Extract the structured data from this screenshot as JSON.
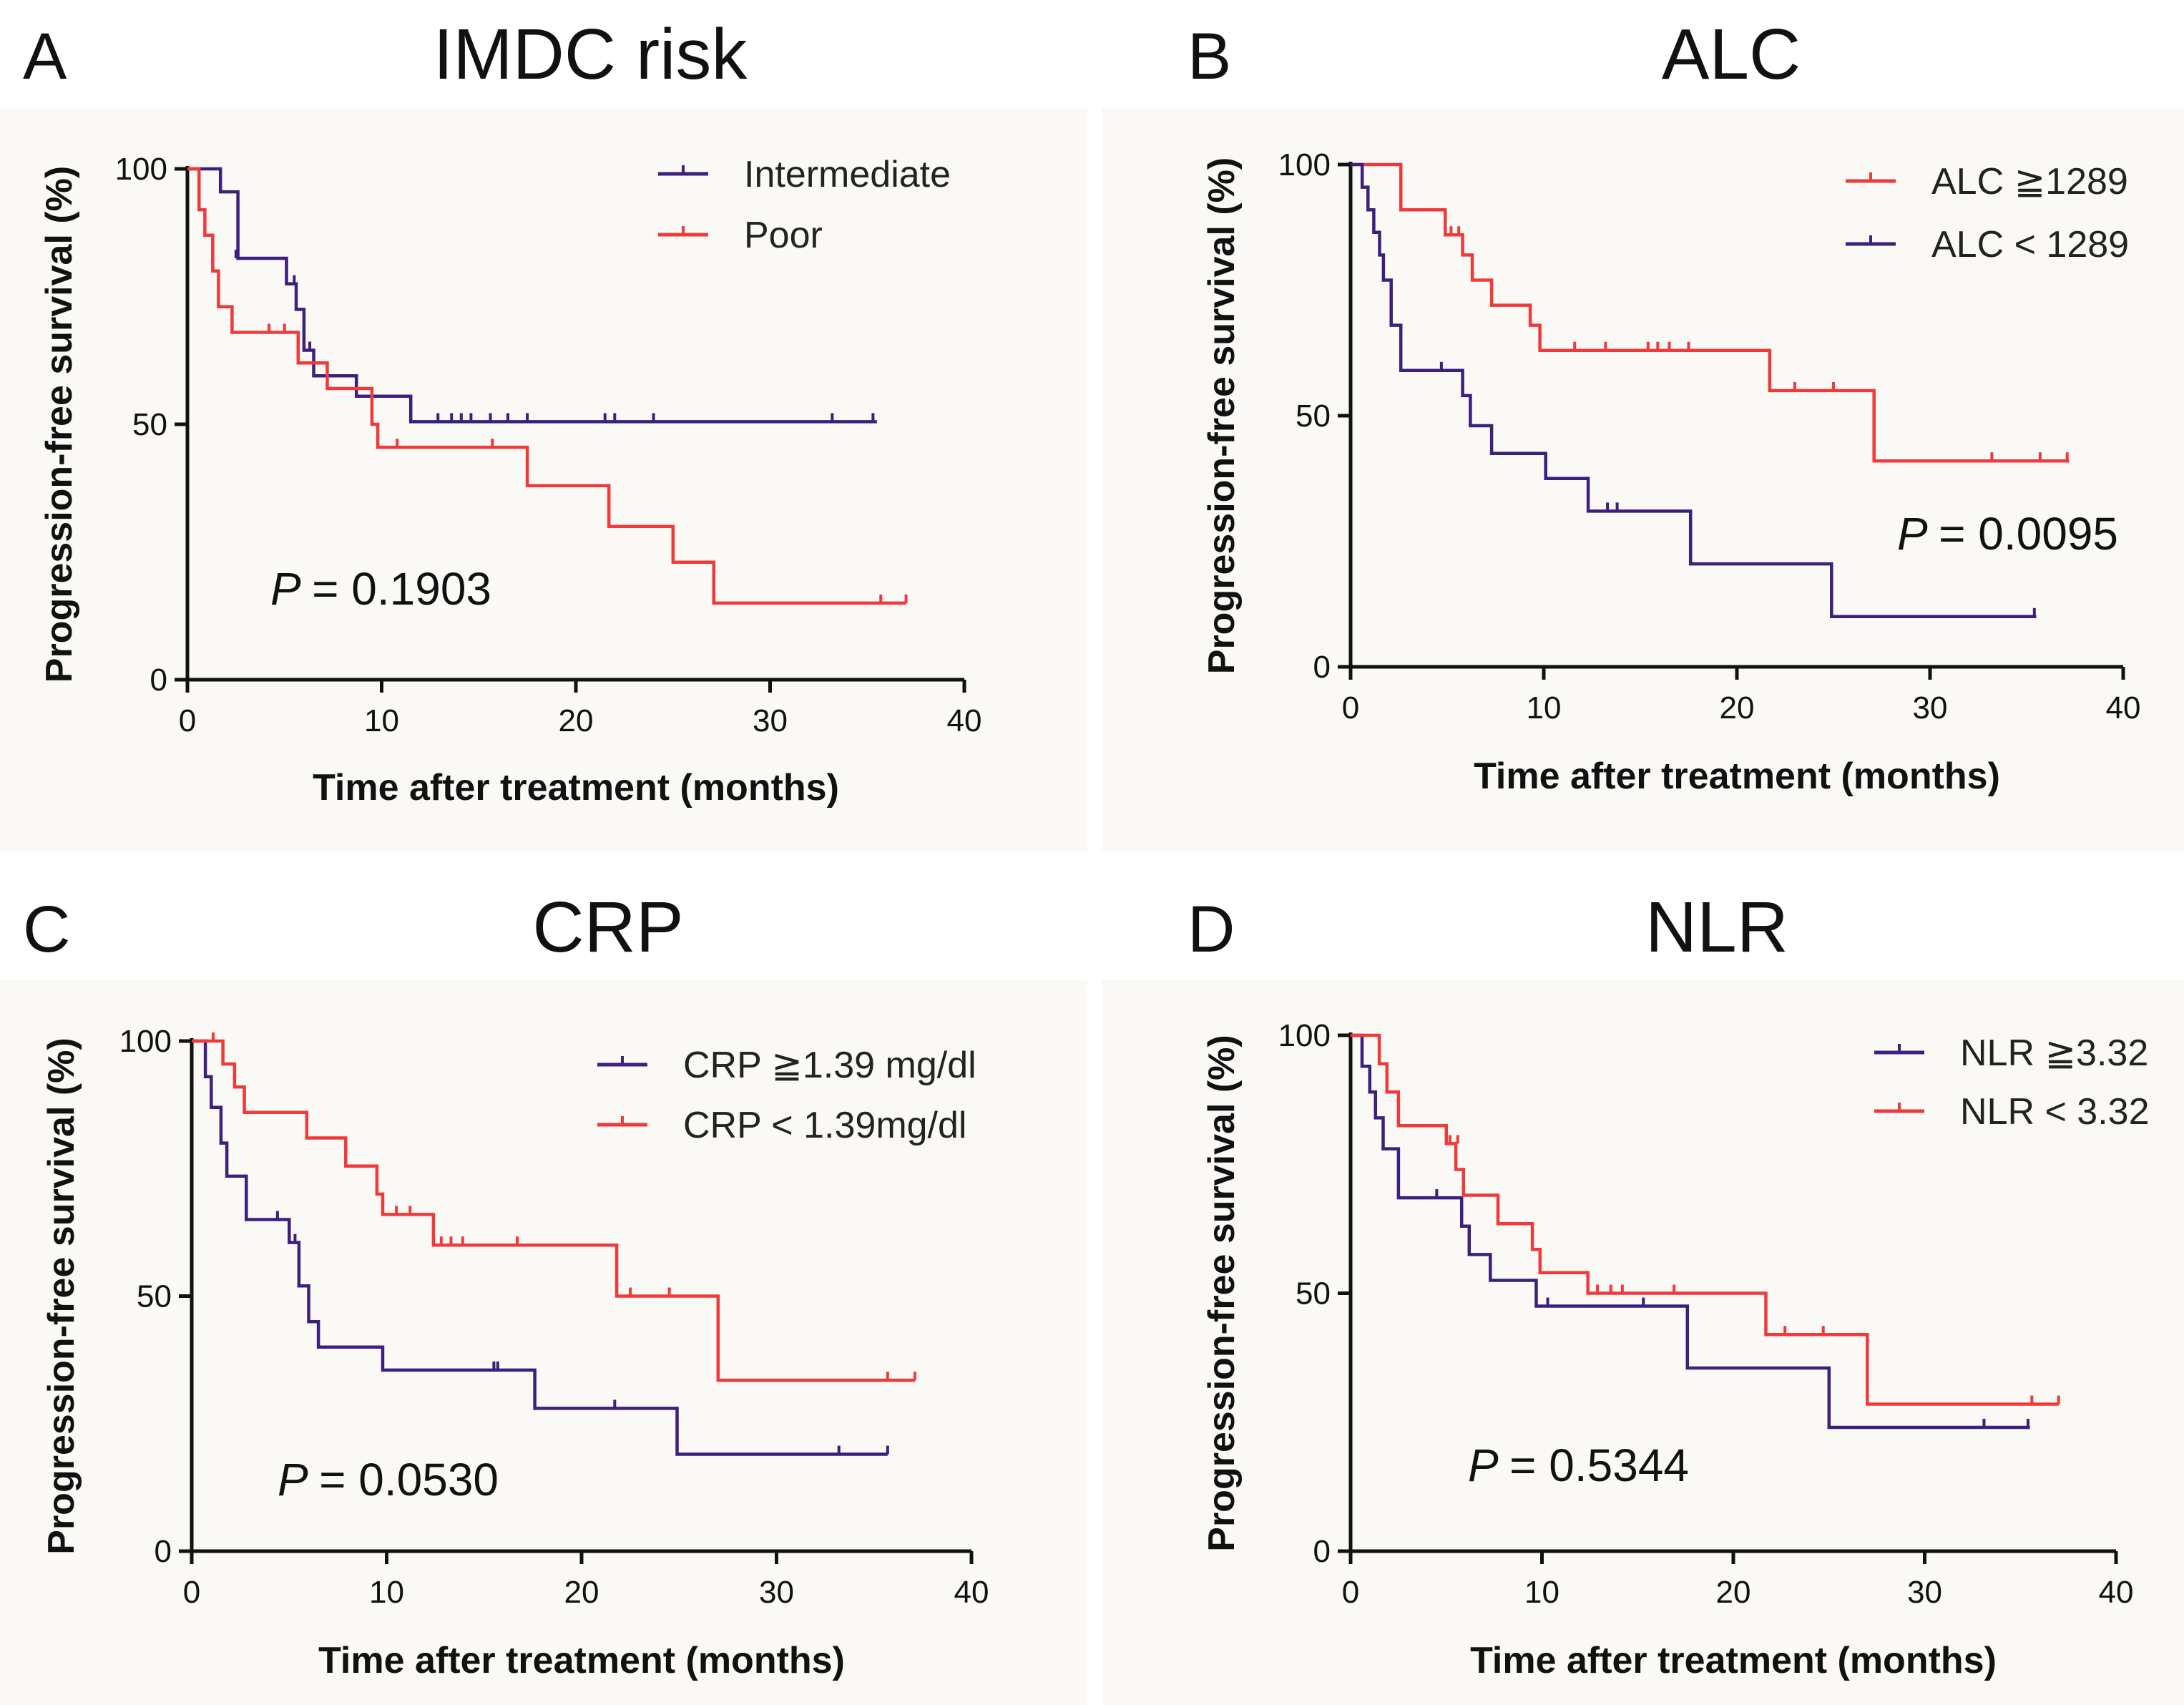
{
  "chart_data": [
    {
      "type": "line",
      "subtype": "kaplan-meier",
      "panel": "A",
      "title": "IMDC risk",
      "xlabel": "Time after treatment (months)",
      "ylabel": "Progression-free survival (%)",
      "xlim": [
        0,
        40
      ],
      "ylim": [
        0,
        100
      ],
      "xticks": [
        "0",
        "10",
        "20",
        "30",
        "40"
      ],
      "yticks": [
        "0",
        "50",
        "100"
      ],
      "legend_position": "top-right",
      "p_label": "P",
      "p_value": "= 0.1903",
      "series": [
        {
          "name": "Intermediate",
          "color": "#3c1f7e",
          "x": [
            0,
            1.7,
            2.6,
            5.1,
            5.6,
            6.0,
            6.5,
            8.7,
            11.5,
            12.8,
            35.5
          ],
          "y": [
            100,
            95.5,
            82.5,
            77.5,
            72.5,
            64.5,
            59.5,
            55.5,
            50.5,
            50.5,
            50.5
          ],
          "censor_x": [
            2.5,
            5.5,
            6.3,
            12.9,
            13.6,
            14.1,
            14.6,
            15.6,
            16.5,
            17.5,
            21.5,
            22.0,
            24.0,
            33.2,
            35.3
          ],
          "censor_y": [
            82.5,
            77.5,
            64.5,
            50.5,
            50.5,
            50.5,
            50.5,
            50.5,
            50.5,
            50.5,
            50.5,
            50.5,
            50.5,
            50.5,
            50.5
          ]
        },
        {
          "name": "Poor",
          "color": "#f03a3a",
          "x": [
            0,
            0.6,
            0.9,
            1.3,
            1.6,
            2.3,
            5.7,
            7.2,
            9.5,
            9.8,
            17.5,
            21.7,
            25.0,
            27.1,
            37.0
          ],
          "y": [
            100,
            92,
            87,
            80,
            73,
            68,
            62,
            57,
            50,
            45.5,
            38,
            30,
            23,
            15,
            15
          ],
          "censor_x": [
            4.2,
            5.0,
            10.8,
            15.7,
            35.7,
            37.0
          ],
          "censor_y": [
            68,
            68,
            45.5,
            45.5,
            15,
            15
          ]
        }
      ]
    },
    {
      "type": "line",
      "subtype": "kaplan-meier",
      "panel": "B",
      "title": "ALC",
      "xlabel": "Time after treatment (months)",
      "ylabel": "Progression-free survival (%)",
      "xlim": [
        0,
        40
      ],
      "ylim": [
        0,
        100
      ],
      "xticks": [
        "0",
        "10",
        "20",
        "30",
        "40"
      ],
      "yticks": [
        "0",
        "50",
        "100"
      ],
      "legend_position": "top-right",
      "p_label": "P",
      "p_value": "= 0.0095",
      "series": [
        {
          "name": "ALC ≧1289",
          "color": "#f03a3a",
          "x": [
            0,
            2.6,
            4.9,
            5.8,
            6.3,
            7.3,
            9.3,
            9.8,
            21.7,
            27.1,
            37.2
          ],
          "y": [
            100,
            91,
            86,
            82,
            77,
            72,
            68,
            63,
            55,
            41,
            41
          ],
          "censor_x": [
            5.2,
            5.6,
            11.6,
            13.2,
            15.4,
            15.9,
            16.5,
            17.5,
            23.0,
            25.0,
            33.2,
            35.7,
            37.1
          ],
          "censor_y": [
            86,
            86,
            63,
            63,
            63,
            63,
            63,
            63,
            55,
            55,
            41,
            41,
            41
          ]
        },
        {
          "name": "ALC < 1289",
          "color": "#3c1f7e",
          "x": [
            0,
            0.6,
            0.9,
            1.2,
            1.5,
            1.7,
            2.1,
            2.6,
            5.8,
            6.2,
            7.3,
            10.1,
            12.3,
            17.6,
            24.9,
            35.5
          ],
          "y": [
            100,
            95.5,
            91,
            86.5,
            82,
            77,
            68,
            59,
            54,
            48,
            42.5,
            37.5,
            31,
            20.5,
            10,
            10
          ],
          "censor_x": [
            4.7,
            13.3,
            13.8,
            35.4
          ],
          "censor_y": [
            59,
            31,
            31,
            10
          ]
        }
      ]
    },
    {
      "type": "line",
      "subtype": "kaplan-meier",
      "panel": "C",
      "title": "CRP",
      "xlabel": "Time after treatment (months)",
      "ylabel": "Progression-free survival (%)",
      "xlim": [
        0,
        40
      ],
      "ylim": [
        0,
        100
      ],
      "xticks": [
        "0",
        "10",
        "20",
        "30",
        "40"
      ],
      "yticks": [
        "0",
        "50",
        "100"
      ],
      "legend_position": "top-right",
      "p_label": "P",
      "p_value": "= 0.0530",
      "series": [
        {
          "name": "CRP ≧1.39 mg/dl",
          "color": "#3c1f7e",
          "x": [
            0,
            0.7,
            1.0,
            1.5,
            1.8,
            2.8,
            5.0,
            5.5,
            6.0,
            6.5,
            7.3,
            9.8,
            17.6,
            24.9,
            35.7
          ],
          "y": [
            100,
            93,
            87,
            80,
            73.5,
            65,
            60.5,
            52,
            45,
            40,
            40,
            35.5,
            28,
            19,
            19
          ],
          "censor_x": [
            4.4,
            5.3,
            15.5,
            15.7,
            21.7,
            33.2,
            35.7
          ],
          "censor_y": [
            65,
            60.5,
            35.5,
            35.5,
            28,
            19,
            19
          ]
        },
        {
          "name": "CRP < 1.39mg/dl",
          "color": "#f03a3a",
          "x": [
            0,
            1.0,
            1.6,
            2.2,
            2.7,
            5.9,
            7.9,
            9.5,
            9.8,
            12.4,
            21.8,
            27.0,
            37.1
          ],
          "y": [
            100,
            100,
            95.5,
            91,
            86,
            81,
            75.5,
            70,
            66,
            60,
            50,
            33.5,
            33.5
          ],
          "censor_x": [
            1.1,
            10.5,
            11.2,
            12.8,
            13.3,
            13.9,
            16.7,
            22.5,
            24.5,
            35.7,
            37.1
          ],
          "censor_y": [
            100,
            66,
            66,
            60,
            60,
            60,
            60,
            50,
            50,
            33.5,
            33.5
          ]
        }
      ]
    },
    {
      "type": "line",
      "subtype": "kaplan-meier",
      "panel": "D",
      "title": "NLR",
      "xlabel": "Time after treatment (months)",
      "ylabel": "Progression-free survival (%)",
      "xlim": [
        0,
        40
      ],
      "ylim": [
        0,
        100
      ],
      "xticks": [
        "0",
        "10",
        "20",
        "30",
        "40"
      ],
      "yticks": [
        "0",
        "50",
        "100"
      ],
      "legend_position": "top-right",
      "p_label": "P",
      "p_value": "= 0.5344",
      "series": [
        {
          "name": "NLR ≧3.32",
          "color": "#3c1f7e",
          "x": [
            0,
            0.6,
            1.0,
            1.3,
            1.7,
            2.5,
            5.8,
            6.2,
            7.3,
            9.7,
            17.6,
            25.0,
            35.5
          ],
          "y": [
            100,
            94,
            89,
            84,
            78,
            68.5,
            63,
            57.5,
            52.5,
            47.5,
            35.5,
            24,
            24
          ],
          "censor_x": [
            4.5,
            10.3,
            15.3,
            33.1,
            35.4
          ],
          "censor_y": [
            68.5,
            47.5,
            47.5,
            24,
            24
          ]
        },
        {
          "name": "NLR < 3.32",
          "color": "#f03a3a",
          "x": [
            0,
            1.5,
            1.9,
            2.5,
            5.0,
            5.5,
            5.9,
            6.4,
            7.7,
            9.5,
            9.9,
            12.4,
            21.7,
            27.0,
            37.0
          ],
          "y": [
            100,
            94.5,
            89,
            82.5,
            79,
            74,
            69,
            69,
            63.5,
            58.5,
            54,
            50,
            42,
            28.5,
            28.5
          ],
          "censor_x": [
            5.2,
            5.6,
            12.9,
            13.6,
            14.2,
            16.9,
            22.7,
            24.7,
            35.6,
            37.0
          ],
          "censor_y": [
            79,
            79,
            50,
            50,
            50,
            50,
            42,
            42,
            28.5,
            28.5
          ]
        }
      ]
    }
  ]
}
